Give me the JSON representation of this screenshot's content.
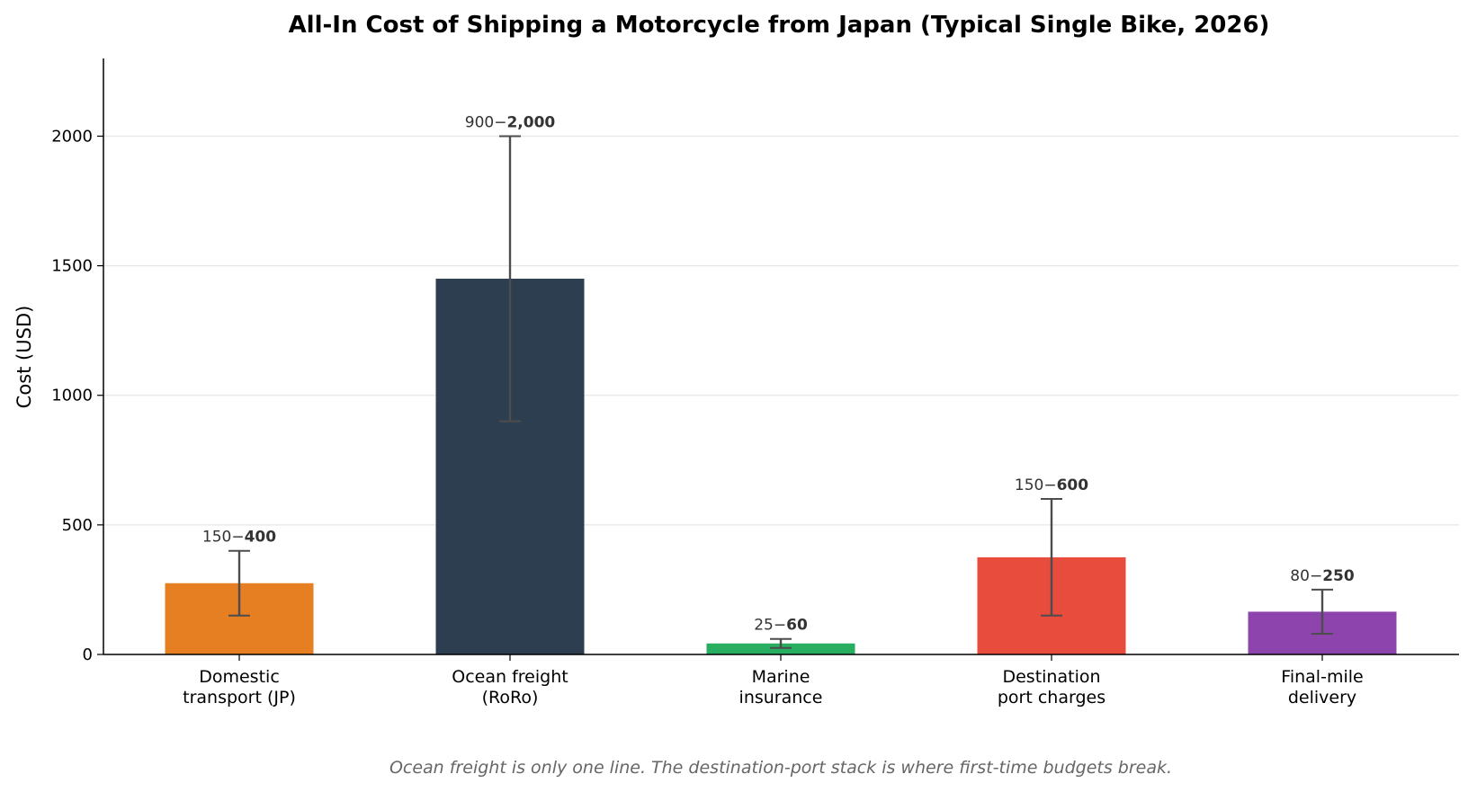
{
  "chart_data": {
    "type": "bar",
    "title": "All-In Cost of Shipping a Motorcycle from Japan (Typical Single Bike, 2026)",
    "xlabel": "",
    "ylabel": "Cost (USD)",
    "ylim": [
      0,
      2300
    ],
    "yticks": [
      0,
      500,
      1000,
      1500,
      2000
    ],
    "grid": "horizontal",
    "categories": [
      [
        "Domestic",
        "transport (JP)"
      ],
      [
        "Ocean freight",
        "(RoRo)"
      ],
      [
        "Marine",
        "insurance"
      ],
      [
        "Destination",
        "port charges"
      ],
      [
        "Final-mile",
        "delivery"
      ]
    ],
    "values": [
      275,
      1450,
      42.5,
      375,
      165
    ],
    "ranges": [
      {
        "low": 150,
        "high": 400,
        "low_label": "150",
        "high_label": "400"
      },
      {
        "low": 900,
        "high": 2000,
        "low_label": "900",
        "high_label": "2,000"
      },
      {
        "low": 25,
        "high": 60,
        "low_label": "25",
        "high_label": "60"
      },
      {
        "low": 150,
        "high": 600,
        "low_label": "150",
        "high_label": "600"
      },
      {
        "low": 80,
        "high": 250,
        "low_label": "80",
        "high_label": "250"
      }
    ],
    "colors": [
      "#e67e22",
      "#2c3e50",
      "#27ae60",
      "#e74c3c",
      "#8e44ad"
    ],
    "error_bar_color": "#4d4d4d",
    "caption": "Ocean freight is only one line. The destination-port stack is where first-time budgets break."
  }
}
